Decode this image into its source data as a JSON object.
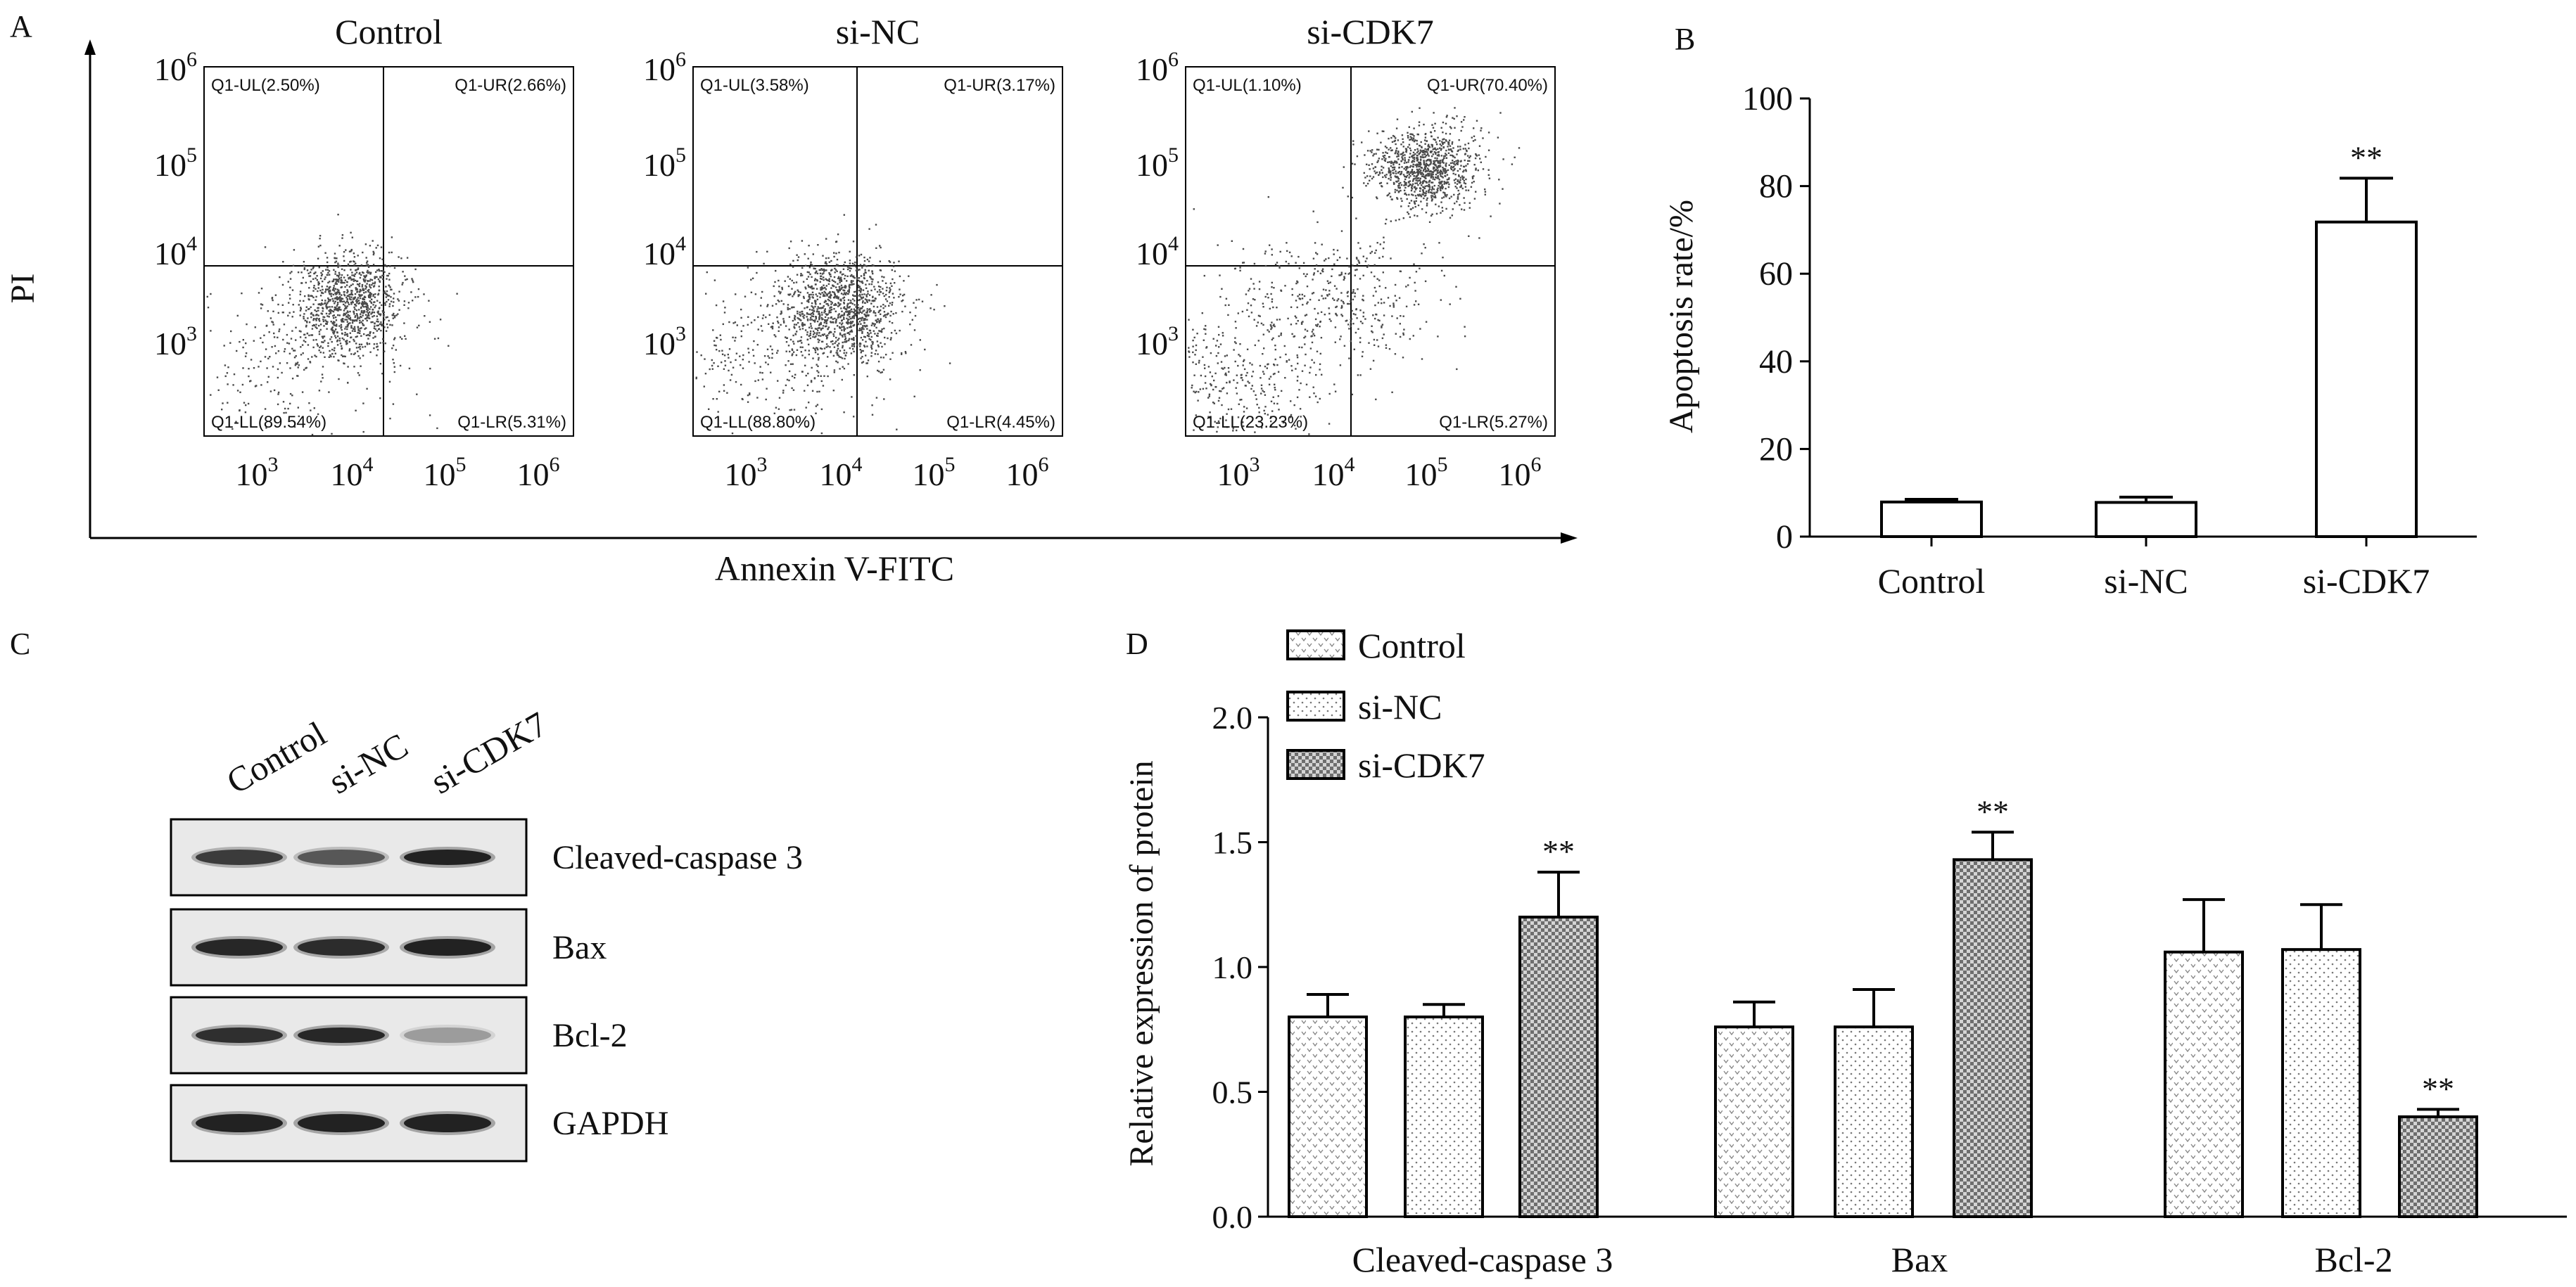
{
  "panel_labels": [
    "A",
    "B",
    "C",
    "D"
  ],
  "panel_a": {
    "ylabel": "PI",
    "xlabel": "Annexin V-FITC",
    "tick_base": "10",
    "tick_exps": [
      "3",
      "4",
      "5",
      "6"
    ],
    "plots": [
      {
        "title": "Control",
        "ul": "Q1-UL(2.50%)",
        "ur": "Q1-UR(2.66%)",
        "ll": "Q1-LL(89.54%)",
        "lr": "Q1-LR(5.31%)"
      },
      {
        "title": "si-NC",
        "ul": "Q1-UL(3.58%)",
        "ur": "Q1-UR(3.17%)",
        "ll": "Q1-LL(88.80%)",
        "lr": "Q1-LR(4.45%)"
      },
      {
        "title": "si-CDK7",
        "ul": "Q1-UL(1.10%)",
        "ur": "Q1-UR(70.40%)",
        "ll": "Q1-LL(23.23%)",
        "lr": "Q1-LR(5.27%)"
      }
    ]
  },
  "panel_c": {
    "lanes": [
      "Control",
      "si-NC",
      "si-CDK7"
    ],
    "rows": [
      "Cleaved-caspase 3",
      "Bax",
      "Bcl-2",
      "GAPDH"
    ]
  },
  "chart_data": [
    {
      "type": "bar",
      "panel": "B",
      "categories": [
        "Control",
        "si-NC",
        "si-CDK7"
      ],
      "values": [
        7.9,
        7.8,
        71.8
      ],
      "errors": [
        0.6,
        1.2,
        10.0
      ],
      "annotations": [
        "",
        "",
        "**"
      ],
      "ylabel": "Apoptosis rate/%",
      "xlabel": "",
      "ylim": [
        0,
        100
      ],
      "yticks": [
        0,
        20,
        40,
        60,
        80,
        100
      ],
      "grid": false,
      "colors": {
        "bar_fill": "#ffffff",
        "bar_edge": "#000000"
      }
    },
    {
      "type": "bar",
      "panel": "D",
      "categories": [
        "Cleaved-caspase 3",
        "Bax",
        "Bcl-2"
      ],
      "series": [
        {
          "name": "Control",
          "values": [
            0.8,
            0.76,
            1.06
          ],
          "errors": [
            0.09,
            0.1,
            0.21
          ]
        },
        {
          "name": "si-NC",
          "values": [
            0.8,
            0.76,
            1.07
          ],
          "errors": [
            0.05,
            0.15,
            0.18
          ]
        },
        {
          "name": "si-CDK7",
          "values": [
            1.2,
            1.43,
            0.4
          ],
          "errors": [
            0.18,
            0.11,
            0.03
          ]
        }
      ],
      "annotations": [
        "**",
        "**",
        "**"
      ],
      "ylabel": "Relative expression of protein",
      "xlabel": "",
      "ylim": [
        0,
        2.0
      ],
      "yticks": [
        "0.0",
        "0.5",
        "1.0",
        "1.5",
        "2.0"
      ],
      "legend": "top-left",
      "grid": false
    }
  ]
}
